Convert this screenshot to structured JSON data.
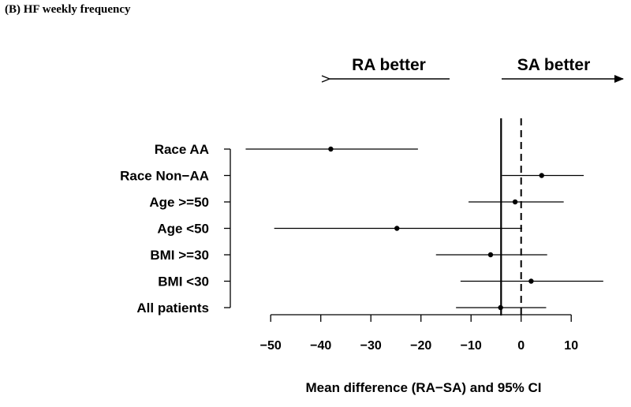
{
  "panel_title": "(B) HF weekly frequency",
  "chart_data": {
    "type": "forest",
    "title": "(B) HF weekly frequency",
    "xlabel": "Mean difference (RA−SA) and 95% CI",
    "xlim": [
      -55,
      17
    ],
    "xticks": [
      -50,
      -40,
      -30,
      -20,
      -10,
      0,
      10
    ],
    "xtick_labels": [
      "−50",
      "−40",
      "−30",
      "−20",
      "−10",
      "0",
      "10"
    ],
    "reference_lines": {
      "null_dashed": 0,
      "overall_solid": -4
    },
    "annotations": {
      "left": "RA better",
      "right": "SA better"
    },
    "rows": [
      {
        "label": "Race AA",
        "mean": -38.0,
        "lower": -55.0,
        "upper": -20.6
      },
      {
        "label": "Race Non−AA",
        "mean": 4.1,
        "lower": -3.8,
        "upper": 12.5
      },
      {
        "label": "Age >=50",
        "mean": -1.2,
        "lower": -10.5,
        "upper": 8.5
      },
      {
        "label": "Age <50",
        "mean": -24.8,
        "lower": -49.3,
        "upper": 0.2
      },
      {
        "label": "BMI >=30",
        "mean": -6.1,
        "lower": -17.0,
        "upper": 5.2
      },
      {
        "label": "BMI <30",
        "mean": 2.0,
        "lower": -12.1,
        "upper": 16.4
      },
      {
        "label": "All patients",
        "mean": -4.1,
        "lower": -13.0,
        "upper": 5.0
      }
    ]
  }
}
